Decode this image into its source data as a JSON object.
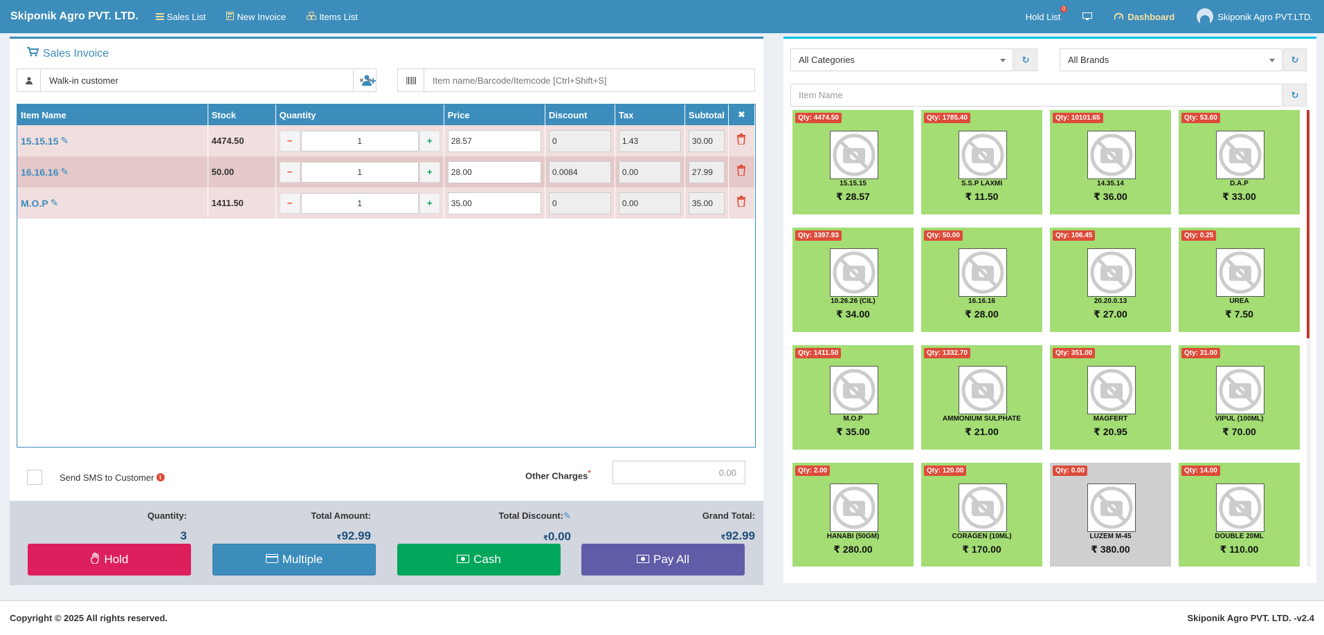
{
  "header": {
    "brand": "Skiponik Agro PVT. LTD.",
    "nav": [
      {
        "label": "Sales List"
      },
      {
        "label": "New Invoice"
      },
      {
        "label": "Items List"
      }
    ],
    "hold_list": "Hold List",
    "hold_count": "0",
    "dashboard": "Dashboard",
    "user": "Skiponik Agro PVT.LTD."
  },
  "invoice": {
    "title": "Sales Invoice",
    "customer": "Walk-in customer",
    "customer_clear": "×",
    "item_search_placeholder": "Item name/Barcode/Itemcode [Ctrl+Shift+S]",
    "columns": [
      "Item Name",
      "Stock",
      "Quantity",
      "Price",
      "Discount",
      "Tax",
      "Subtotal"
    ],
    "rows": [
      {
        "name": "15.15.15",
        "stock": "4474.50",
        "qty": "1",
        "price": "28.57",
        "discount": "0",
        "tax": "1.43",
        "subtotal": "30.00"
      },
      {
        "name": "16.16.16",
        "stock": "50.00",
        "qty": "1",
        "price": "28.00",
        "discount": "0.0084",
        "tax": "0.00",
        "subtotal": "27.99"
      },
      {
        "name": "M.O.P",
        "stock": "1411.50",
        "qty": "1",
        "price": "35.00",
        "discount": "0",
        "tax": "0.00",
        "subtotal": "35.00"
      }
    ],
    "sms_label": "Send SMS to Customer",
    "other_charges_label": "Other Charges",
    "other_charges_required": "*",
    "other_charges_placeholder": "0.00"
  },
  "totals": {
    "quantity_label": "Quantity:",
    "quantity": "3",
    "total_amount_label": "Total Amount:",
    "total_amount": "92.99",
    "total_discount_label": "Total Discount:",
    "total_discount": "0.00",
    "grand_total_label": "Grand Total:",
    "grand_total": "92.99",
    "currency": "₹"
  },
  "actions": {
    "hold": "Hold",
    "multiple": "Multiple",
    "cash": "Cash",
    "pay_all": "Pay All"
  },
  "actions_colors": {
    "hold": "#dd1f5d",
    "multiple": "#3c8dbc",
    "cash": "#00a65a",
    "pay_all": "#605ca8"
  },
  "filters": {
    "category": "All Categories",
    "brand": "All Brands",
    "item_name_placeholder": "Item Name"
  },
  "products": [
    {
      "qty": "Qty: 4474.50",
      "name": "15.15.15",
      "price": "₹ 28.57"
    },
    {
      "qty": "Qty: 1785.40",
      "name": "S.S.P LAXMI",
      "price": "₹ 11.50"
    },
    {
      "qty": "Qty: 10101.65",
      "name": "14.35.14",
      "price": "₹ 36.00"
    },
    {
      "qty": "Qty: 53.60",
      "name": "D.A.P",
      "price": "₹ 33.00"
    },
    {
      "qty": "Qty: 3397.93",
      "name": "10.26.26 (CIL)",
      "price": "₹ 34.00"
    },
    {
      "qty": "Qty: 50.00",
      "name": "16.16.16",
      "price": "₹ 28.00"
    },
    {
      "qty": "Qty: 106.45",
      "name": "20.20.0.13",
      "price": "₹ 27.00"
    },
    {
      "qty": "Qty: 0.25",
      "name": "UREA",
      "price": "₹ 7.50"
    },
    {
      "qty": "Qty: 1411.50",
      "name": "M.O.P",
      "price": "₹ 35.00"
    },
    {
      "qty": "Qty: 1332.70",
      "name": "AMMONIUM SULPHATE",
      "price": "₹ 21.00"
    },
    {
      "qty": "Qty: 351.00",
      "name": "MAGFERT",
      "price": "₹ 20.95"
    },
    {
      "qty": "Qty: 31.00",
      "name": "VIPUL (100ML)",
      "price": "₹ 70.00"
    },
    {
      "qty": "Qty: 2.00",
      "name": "HANABI (50GM)",
      "price": "₹ 280.00"
    },
    {
      "qty": "Qty: 120.00",
      "name": "CORAGEN (10ML)",
      "price": "₹ 170.00"
    },
    {
      "qty": "Qty: 0.00",
      "name": "LUZEM M-45",
      "price": "₹ 380.00",
      "out_of_stock": true
    },
    {
      "qty": "Qty: 14.00",
      "name": "DOUBLE 20ML",
      "price": "₹ 110.00"
    }
  ],
  "footer": {
    "copyright": "Copyright © 2025 All rights reserved.",
    "version": "Skiponik Agro PVT. LTD. -v2.4"
  }
}
